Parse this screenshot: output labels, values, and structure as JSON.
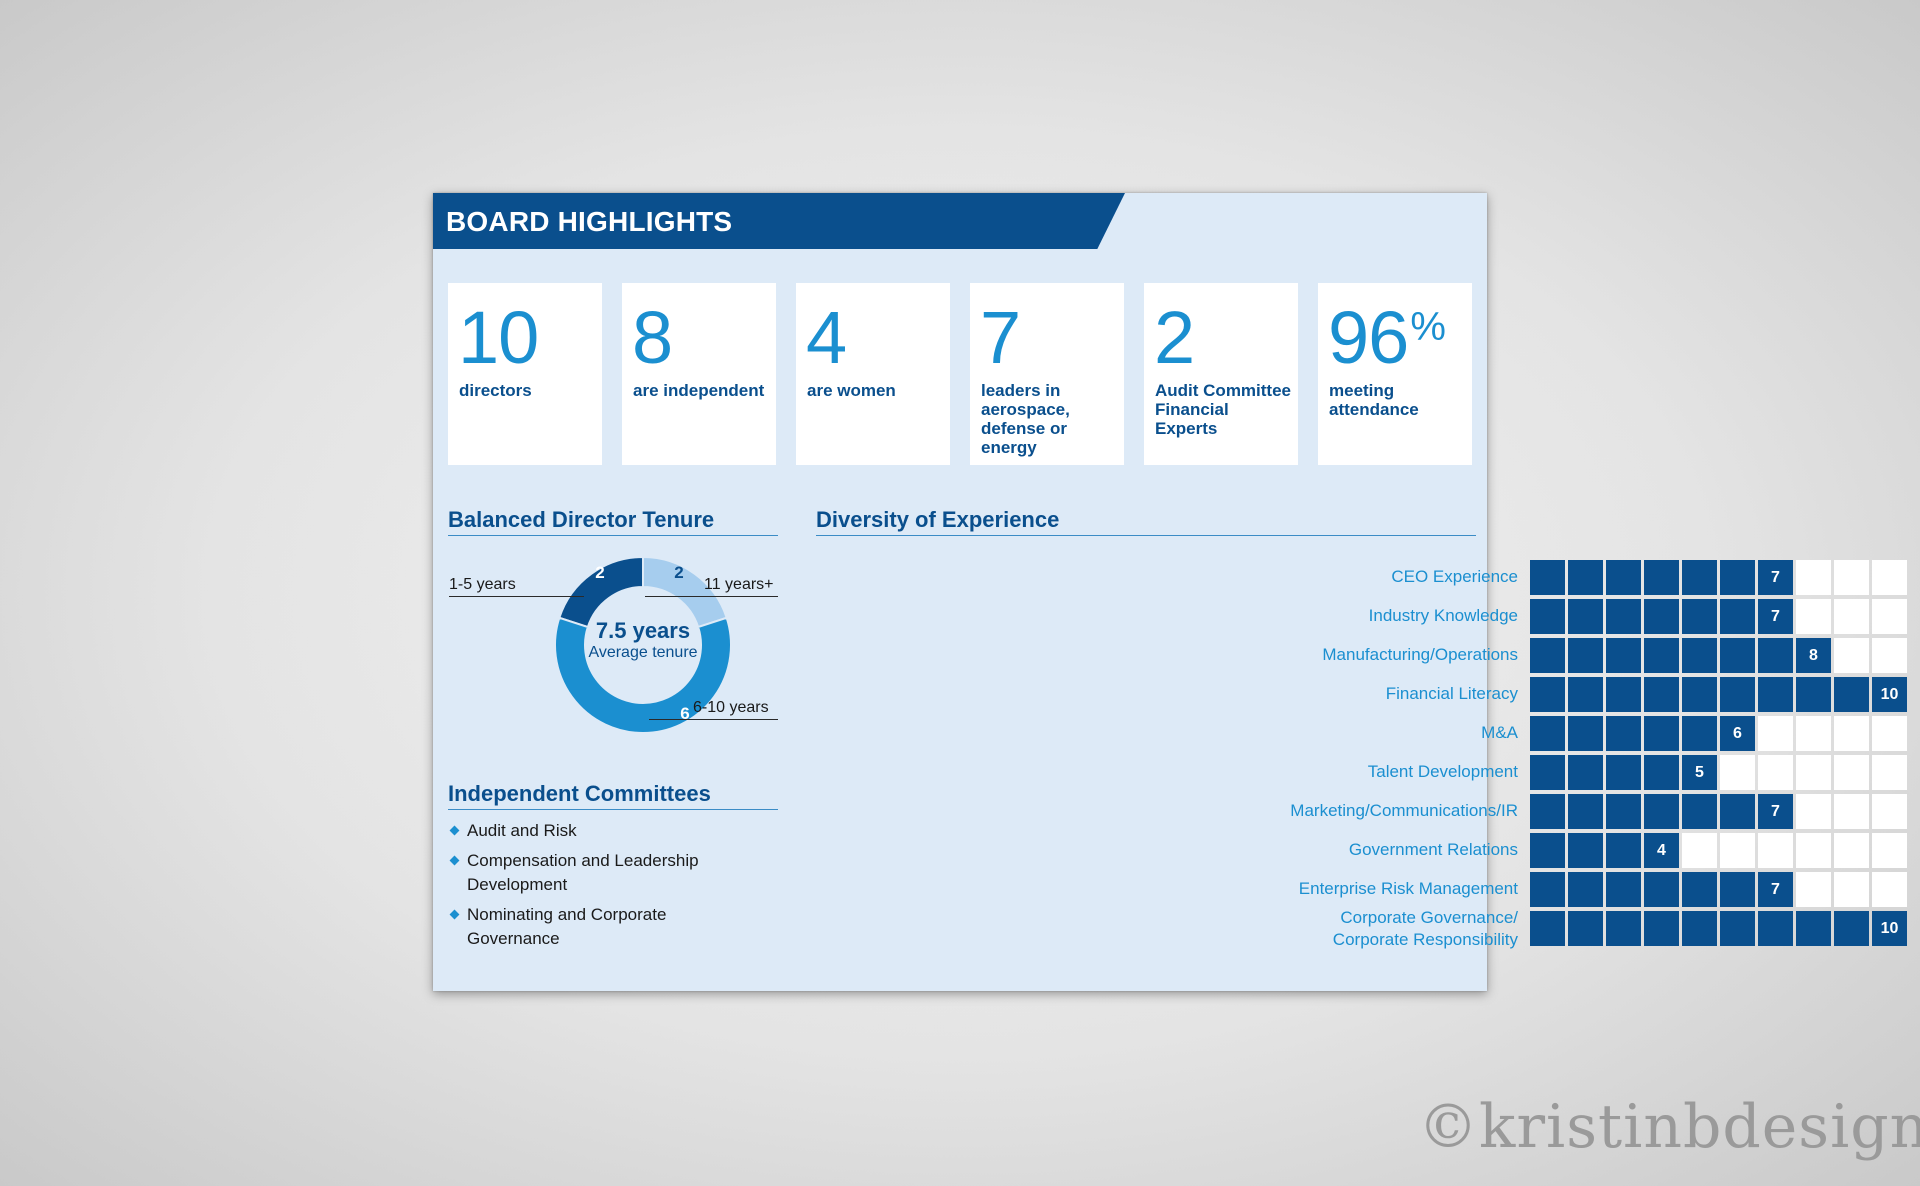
{
  "banner": {
    "title": "BOARD HIGHLIGHTS"
  },
  "stats": [
    {
      "value": "10",
      "suffix": "",
      "label": "directors"
    },
    {
      "value": "8",
      "suffix": "",
      "label": "are independent"
    },
    {
      "value": "4",
      "suffix": "",
      "label": "are women"
    },
    {
      "value": "7",
      "suffix": "",
      "label": "leaders in aerospace, defense or energy"
    },
    {
      "value": "2",
      "suffix": "",
      "label": "Audit Committee Financial Experts"
    },
    {
      "value": "96",
      "suffix": "%",
      "label": "meeting attendance"
    }
  ],
  "tenure": {
    "title": "Balanced Director Tenure",
    "center_value": "7.5 years",
    "center_label": "Average tenure",
    "segments": [
      {
        "label": "1-5 years",
        "count": 2,
        "color": "#0a4f8d"
      },
      {
        "label": "11 years+",
        "count": 2,
        "color": "#a6cdee"
      },
      {
        "label": "6-10 years",
        "count": 6,
        "color": "#1b8fd0"
      }
    ]
  },
  "committees": {
    "title": "Independent Committees",
    "items": [
      "Audit and Risk",
      "Compensation and Leadership Development",
      "Nominating and Corporate Governance"
    ]
  },
  "experience": {
    "title": "Diversity of Experience",
    "total": 10,
    "fill_color": "#0a4f8d",
    "rows": [
      {
        "label_lines": [
          "CEO Experience"
        ],
        "count": 7
      },
      {
        "label_lines": [
          "Industry Knowledge"
        ],
        "count": 7
      },
      {
        "label_lines": [
          "Manufacturing/Operations"
        ],
        "count": 8
      },
      {
        "label_lines": [
          "Financial Literacy"
        ],
        "count": 10
      },
      {
        "label_lines": [
          "M&A"
        ],
        "count": 6
      },
      {
        "label_lines": [
          "Talent Development"
        ],
        "count": 5
      },
      {
        "label_lines": [
          "Marketing/Communications/IR"
        ],
        "count": 7
      },
      {
        "label_lines": [
          "Government Relations"
        ],
        "count": 4
      },
      {
        "label_lines": [
          "Enterprise Risk Management"
        ],
        "count": 7
      },
      {
        "label_lines": [
          "Corporate Governance/",
          "Corporate Responsibility"
        ],
        "count": 10
      }
    ]
  },
  "watermark": "©kristinbdesign"
}
